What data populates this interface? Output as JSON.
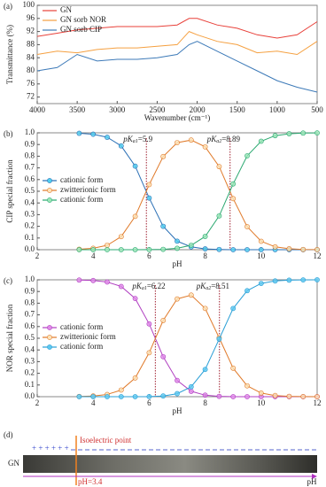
{
  "chart_data": [
    {
      "type": "line",
      "panel_label": "(a)",
      "x_label": "Wavenumber (cm⁻¹)",
      "y_label": "Transmittance (%)",
      "x": [
        4000,
        3750,
        3500,
        3250,
        3000,
        2750,
        2500,
        2250,
        2100,
        2000,
        1750,
        1500,
        1250,
        1000,
        750,
        500
      ],
      "series": [
        {
          "name": "GN",
          "color": "#e8413a",
          "values": [
            90.5,
            91.5,
            92.5,
            93,
            93.5,
            93.5,
            93.5,
            94,
            96,
            96,
            94,
            93,
            91,
            90,
            91,
            95
          ]
        },
        {
          "name": "GN sorb NOR",
          "color": "#f5a040",
          "values": [
            85,
            86,
            85.5,
            86.5,
            87,
            87,
            87.5,
            88,
            92,
            91,
            89,
            88,
            85.5,
            86,
            85,
            89
          ]
        },
        {
          "name": "GN sorb CIP",
          "color": "#3d7ab8",
          "values": [
            80,
            81,
            85,
            83,
            83.5,
            83.5,
            84,
            85,
            88,
            89,
            86,
            83,
            80,
            77,
            75,
            73.5
          ]
        }
      ],
      "xlim": [
        4000,
        500
      ],
      "xticks": [
        4000,
        3500,
        3000,
        2500,
        2000,
        1500,
        1000,
        500
      ],
      "ylim": [
        70,
        100
      ],
      "yticks": [
        72,
        76,
        80,
        84,
        88,
        92,
        96,
        100
      ],
      "legend": "upper left"
    },
    {
      "type": "line",
      "panel_label": "(b)",
      "x_label": "pH",
      "y_label": "CIP special fraction",
      "x": [
        3.5,
        4,
        4.5,
        5,
        5.5,
        6,
        6.5,
        7,
        7.5,
        8,
        8.5,
        9,
        9.5,
        10,
        10.5,
        11,
        11.5,
        12
      ],
      "series": [
        {
          "name": "cationic form",
          "color": "#2a6fb5",
          "marker_fill": "#4fd0f0",
          "values": [
            0.996,
            0.988,
            0.962,
            0.888,
            0.715,
            0.442,
            0.2,
            0.073,
            0.024,
            0.007,
            0.002,
            0,
            0,
            0,
            0,
            0,
            0,
            0
          ]
        },
        {
          "name": "zwitterionic form",
          "color": "#e07a2a",
          "marker_fill": "#fde3b8",
          "values": [
            0.004,
            0.012,
            0.038,
            0.112,
            0.285,
            0.557,
            0.797,
            0.916,
            0.938,
            0.88,
            0.711,
            0.437,
            0.197,
            0.072,
            0.024,
            0.008,
            0.002,
            0.001
          ]
        },
        {
          "name": "cationic form",
          "color": "#2aa870",
          "marker_fill": "#9be6b8",
          "values": [
            0,
            0,
            0,
            0,
            0,
            0.001,
            0.003,
            0.012,
            0.038,
            0.113,
            0.289,
            0.563,
            0.803,
            0.928,
            0.976,
            0.992,
            0.998,
            0.999
          ]
        }
      ],
      "annotations": [
        {
          "x": 5.9,
          "prefix": "pK",
          "sub": "a1",
          "suffix": "=5.9"
        },
        {
          "x": 8.89,
          "prefix": "pK",
          "sub": "a2",
          "suffix": "=8.89"
        }
      ],
      "xlim": [
        2,
        12
      ],
      "xticks": [
        2,
        4,
        6,
        8,
        10,
        12
      ],
      "ylim": [
        0,
        1
      ],
      "yticks": [
        {
          "value": 0,
          "label": "0.0"
        },
        0.1,
        0.2,
        0.3,
        0.4,
        0.5,
        0.6,
        0.7,
        0.8,
        0.9,
        {
          "value": 1,
          "label": "1.0"
        }
      ],
      "legend": "center left"
    },
    {
      "type": "line",
      "panel_label": "(c)",
      "x_label": "pH",
      "y_label": "NOR special fraction",
      "x": [
        3.5,
        4,
        4.5,
        5,
        5.5,
        6,
        6.5,
        7,
        7.5,
        8,
        8.5,
        9,
        9.5,
        10,
        10.5,
        11,
        11.5,
        12
      ],
      "series": [
        {
          "name": "cationic form",
          "color": "#b03fc0",
          "marker_fill": "#e08ae8",
          "values": [
            0.998,
            0.994,
            0.981,
            0.943,
            0.84,
            0.623,
            0.342,
            0.139,
            0.046,
            0.013,
            0.003,
            0,
            0,
            0,
            0,
            0,
            0,
            0
          ]
        },
        {
          "name": "zwitterionic form",
          "color": "#e07a2a",
          "marker_fill": "#fde3b8",
          "values": [
            0.002,
            0.006,
            0.019,
            0.057,
            0.16,
            0.376,
            0.652,
            0.836,
            0.869,
            0.755,
            0.504,
            0.244,
            0.093,
            0.031,
            0.01,
            0.003,
            0.001,
            0
          ]
        },
        {
          "name": "cationic form",
          "color": "#2a9fd6",
          "marker_fill": "#5cc8f0",
          "values": [
            0,
            0,
            0,
            0,
            0,
            0.001,
            0.006,
            0.026,
            0.085,
            0.233,
            0.493,
            0.755,
            0.907,
            0.969,
            0.99,
            0.997,
            0.999,
            1
          ]
        }
      ],
      "annotations": [
        {
          "x": 6.22,
          "prefix": "pK",
          "sub": "a1",
          "suffix": "=6.22"
        },
        {
          "x": 8.51,
          "prefix": "pK",
          "sub": "a2",
          "suffix": "=8.51"
        }
      ],
      "xlim": [
        2,
        12
      ],
      "xticks": [
        2,
        4,
        6,
        8,
        10,
        12
      ],
      "ylim": [
        0,
        1
      ],
      "yticks": [
        {
          "value": 0,
          "label": "0.0"
        },
        0.1,
        0.2,
        0.3,
        0.4,
        0.5,
        0.6,
        0.7,
        0.8,
        0.9,
        {
          "value": 1,
          "label": "1.0"
        }
      ],
      "legend": "center left"
    }
  ],
  "diagram": {
    "panel_label": "(d)",
    "sample": "GN",
    "charges": "+ + + + + +",
    "isoelectric_label": "Isoelectric point",
    "ph_label": "pH=3.4",
    "axis_label": "pH"
  }
}
